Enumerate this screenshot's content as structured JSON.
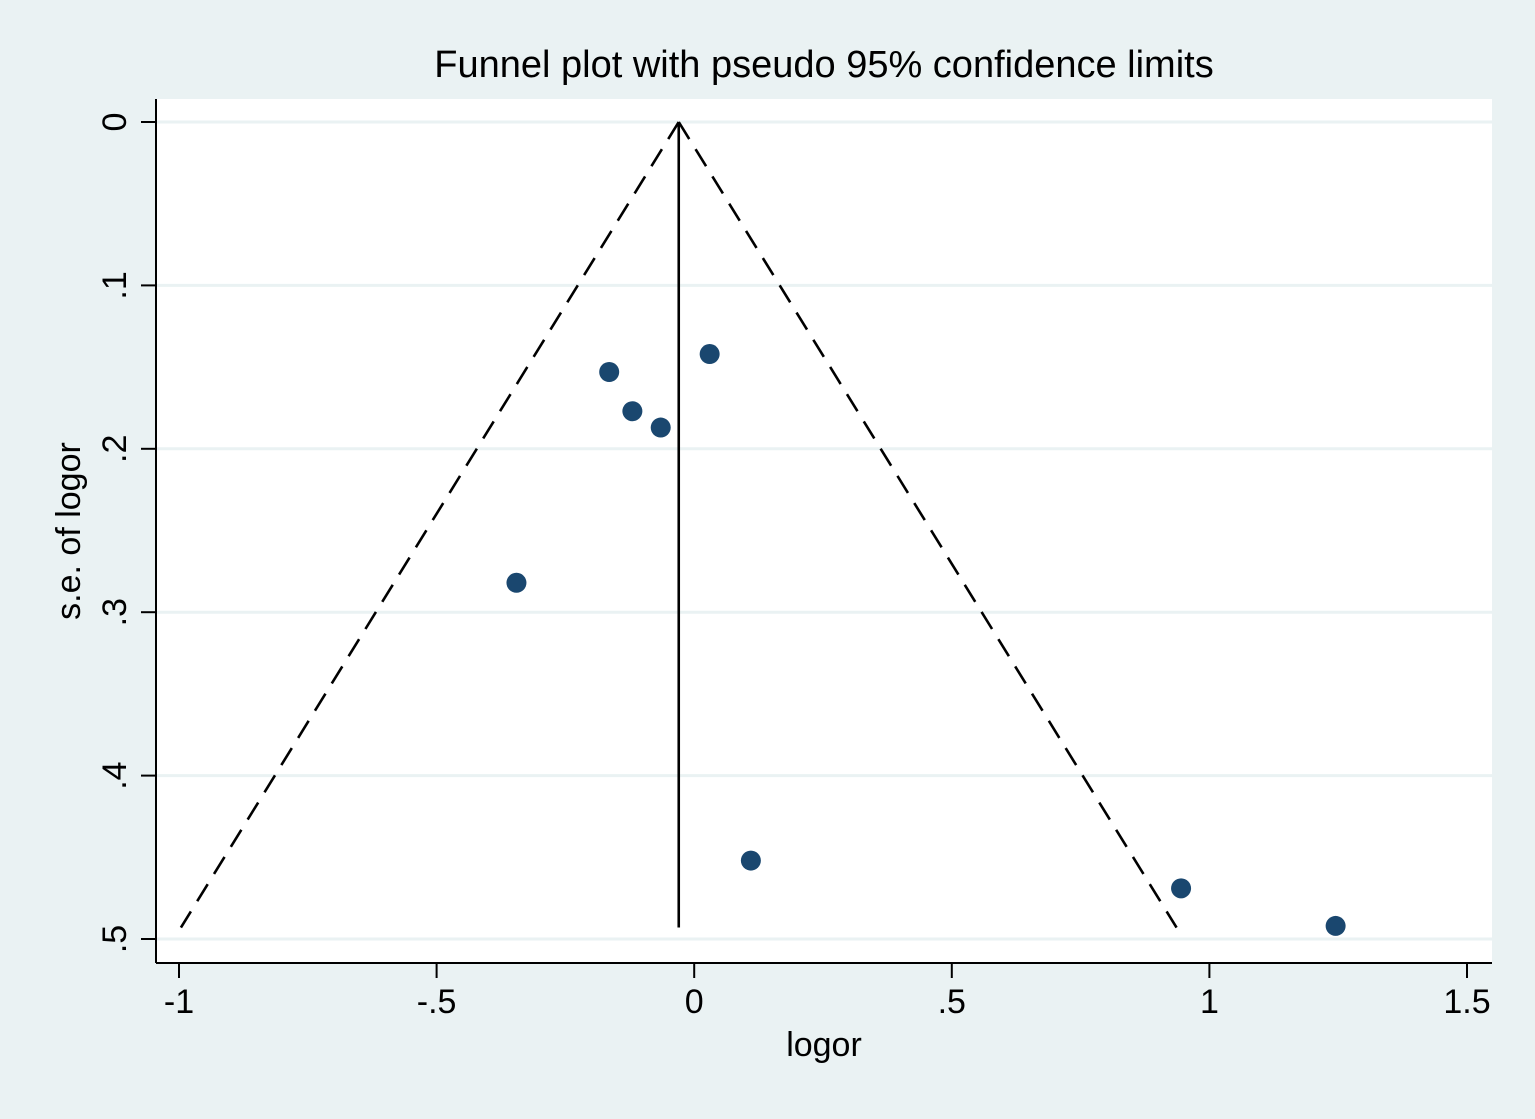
{
  "chart_data": {
    "type": "scatter",
    "title": "Funnel plot with pseudo 95% confidence limits",
    "xlabel": "logor",
    "ylabel": "s.e. of logor",
    "xlim": [
      -1.05,
      1.55
    ],
    "ylim": [
      0,
      0.5
    ],
    "y_reversed": true,
    "x_ticks": [
      -1,
      -0.5,
      0,
      0.5,
      1,
      1.5
    ],
    "x_tick_labels": [
      "-1",
      "-.5",
      "0",
      ".5",
      "1",
      "1.5"
    ],
    "y_ticks": [
      0,
      0.1,
      0.2,
      0.3,
      0.4,
      0.5
    ],
    "y_tick_labels": [
      "0",
      ".1",
      ".2",
      ".3",
      ".4",
      ".5"
    ],
    "grid": true,
    "pooled_estimate": -0.03,
    "points": [
      {
        "x": -0.165,
        "y": 0.153
      },
      {
        "x": -0.12,
        "y": 0.177
      },
      {
        "x": -0.065,
        "y": 0.187
      },
      {
        "x": 0.03,
        "y": 0.142
      },
      {
        "x": -0.345,
        "y": 0.282
      },
      {
        "x": 0.11,
        "y": 0.452
      },
      {
        "x": 0.945,
        "y": 0.469
      },
      {
        "x": 1.245,
        "y": 0.492
      }
    ],
    "colors": {
      "outer_background": "#eaf2f3",
      "plot_background": "#ffffff",
      "grid": "#eaf2f3",
      "marker": "#1a476f",
      "line": "#000000"
    }
  }
}
